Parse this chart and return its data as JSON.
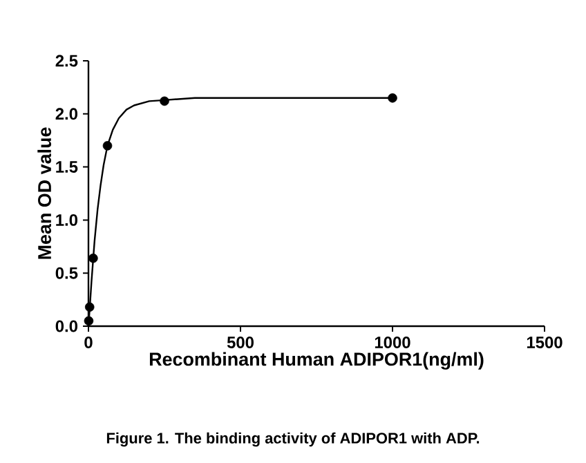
{
  "chart_data": {
    "type": "scatter",
    "xlabel": "Recombinant Human ADIPOR1(ng/ml)",
    "ylabel": "Mean OD value",
    "annotations": [
      "Figure 1. The binding activity of ADIPOR1 with ADP."
    ],
    "xlim": [
      0,
      1500
    ],
    "xticks": [
      0,
      500,
      1000,
      1500
    ],
    "ylim": [
      0,
      2.5
    ],
    "yticks": [
      {
        "value": 0,
        "label": "0.0"
      },
      {
        "value": 0.5,
        "label": "0.5"
      },
      {
        "value": 1,
        "label": "1.0"
      },
      {
        "value": 1.5,
        "label": "1.5"
      },
      {
        "value": 2,
        "label": "2.0"
      },
      {
        "value": 2.5,
        "label": "2.5"
      }
    ],
    "grid": false,
    "series": [
      {
        "type": "line",
        "color": "#000000",
        "marker": "none",
        "line_style": "solid",
        "x": [
          0,
          5,
          10,
          20,
          30,
          40,
          50,
          62.5,
          80,
          100,
          125,
          150,
          200,
          250,
          350,
          500,
          1000
        ],
        "values": [
          0,
          0.2,
          0.42,
          0.8,
          1.1,
          1.33,
          1.52,
          1.7,
          1.85,
          1.96,
          2.04,
          2.08,
          2.12,
          2.13,
          2.15,
          2.15,
          2.15
        ]
      },
      {
        "color": "#000000",
        "marker": "circle",
        "x": [
          0.98,
          3.9,
          15.6,
          62.5,
          250,
          1000
        ],
        "values": [
          0.05,
          0.18,
          0.64,
          1.7,
          2.12,
          2.15
        ]
      }
    ]
  }
}
